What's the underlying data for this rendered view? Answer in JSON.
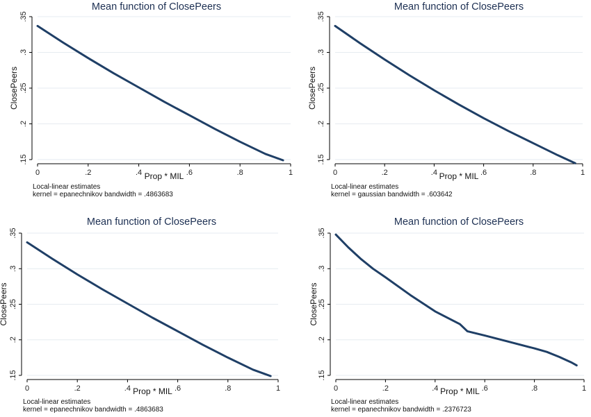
{
  "colors": {
    "line": "#1f3f66",
    "title": "#1c2f52",
    "grid": "#e6ebf0"
  },
  "chart_data": [
    {
      "type": "line",
      "title": "Mean function of ClosePeers",
      "xlabel": "Prop * MIL",
      "ylabel": "ClosePeers",
      "xlim": [
        0,
        1
      ],
      "ylim": [
        0.15,
        0.35
      ],
      "xticks": [
        0,
        0.2,
        0.4,
        0.6,
        0.8,
        1
      ],
      "xtick_labels": [
        "0",
        ".2",
        ".4",
        ".6",
        ".8",
        "1"
      ],
      "yticks": [
        0.15,
        0.2,
        0.25,
        0.3,
        0.35
      ],
      "ytick_labels": [
        ".15",
        ".2",
        ".25",
        ".3",
        ".35"
      ],
      "grid": true,
      "notes": [
        "Local-linear estimates",
        "kernel = epanechnikov bandwidth = .4863683"
      ],
      "series": [
        {
          "x": [
            0,
            0.1,
            0.2,
            0.3,
            0.4,
            0.5,
            0.6,
            0.7,
            0.8,
            0.9,
            0.97
          ],
          "y": [
            0.337,
            0.314,
            0.292,
            0.271,
            0.251,
            0.231,
            0.212,
            0.193,
            0.175,
            0.158,
            0.149
          ]
        }
      ]
    },
    {
      "type": "line",
      "title": "Mean function of ClosePeers",
      "xlabel": "Prop * MIL",
      "ylabel": "ClosePeers",
      "xlim": [
        0,
        1
      ],
      "ylim": [
        0.15,
        0.35
      ],
      "xticks": [
        0,
        0.2,
        0.4,
        0.6,
        0.8,
        1
      ],
      "xtick_labels": [
        "0",
        ".2",
        ".4",
        ".6",
        ".8",
        "1"
      ],
      "yticks": [
        0.15,
        0.2,
        0.25,
        0.3,
        0.35
      ],
      "ytick_labels": [
        ".15",
        ".2",
        ".25",
        ".3",
        ".35"
      ],
      "grid": true,
      "notes": [
        "Local-linear estimates",
        "kernel = gaussian bandwidth = .603642"
      ],
      "series": [
        {
          "x": [
            0,
            0.1,
            0.2,
            0.3,
            0.4,
            0.5,
            0.6,
            0.7,
            0.8,
            0.9,
            0.97
          ],
          "y": [
            0.337,
            0.313,
            0.29,
            0.268,
            0.247,
            0.227,
            0.208,
            0.19,
            0.173,
            0.156,
            0.145
          ]
        }
      ]
    },
    {
      "type": "line",
      "title": "Mean function of ClosePeers",
      "xlabel": "Prop * MIL",
      "ylabel": "ClosePeers",
      "xlim": [
        0,
        1
      ],
      "ylim": [
        0.15,
        0.35
      ],
      "xticks": [
        0,
        0.2,
        0.4,
        0.6,
        0.8,
        1
      ],
      "xtick_labels": [
        "0",
        ".2",
        ".4",
        ".6",
        ".8",
        "1"
      ],
      "yticks": [
        0.15,
        0.2,
        0.25,
        0.3,
        0.35
      ],
      "ytick_labels": [
        ".15",
        ".2",
        ".25",
        ".3",
        ".35"
      ],
      "grid": true,
      "notes": [
        "Local-linear estimates",
        "kernel = epanechnikov bandwidth = .4863683"
      ],
      "series": [
        {
          "x": [
            0,
            0.1,
            0.2,
            0.3,
            0.4,
            0.5,
            0.6,
            0.7,
            0.8,
            0.9,
            0.97
          ],
          "y": [
            0.337,
            0.314,
            0.292,
            0.271,
            0.251,
            0.231,
            0.212,
            0.193,
            0.175,
            0.158,
            0.149
          ]
        }
      ]
    },
    {
      "type": "line",
      "title": "Mean function of ClosePeers",
      "xlabel": "Prop * MIL",
      "ylabel": "ClosePeers",
      "xlim": [
        0,
        1
      ],
      "ylim": [
        0.15,
        0.35
      ],
      "xticks": [
        0,
        0.2,
        0.4,
        0.6,
        0.8,
        1
      ],
      "xtick_labels": [
        "0",
        ".2",
        ".4",
        ".6",
        ".8",
        "1"
      ],
      "yticks": [
        0.15,
        0.2,
        0.25,
        0.3,
        0.35
      ],
      "ytick_labels": [
        ".15",
        ".2",
        ".25",
        ".3",
        ".35"
      ],
      "grid": true,
      "notes": [
        "Local-linear estimates",
        "kernel = epanechnikov bandwidth = .2376723"
      ],
      "series": [
        {
          "x": [
            0,
            0.05,
            0.1,
            0.15,
            0.2,
            0.3,
            0.4,
            0.5,
            0.53,
            0.6,
            0.7,
            0.8,
            0.85,
            0.9,
            0.95,
            0.97
          ],
          "y": [
            0.348,
            0.33,
            0.314,
            0.3,
            0.288,
            0.263,
            0.24,
            0.222,
            0.212,
            0.206,
            0.197,
            0.188,
            0.183,
            0.176,
            0.168,
            0.164
          ]
        }
      ]
    }
  ]
}
